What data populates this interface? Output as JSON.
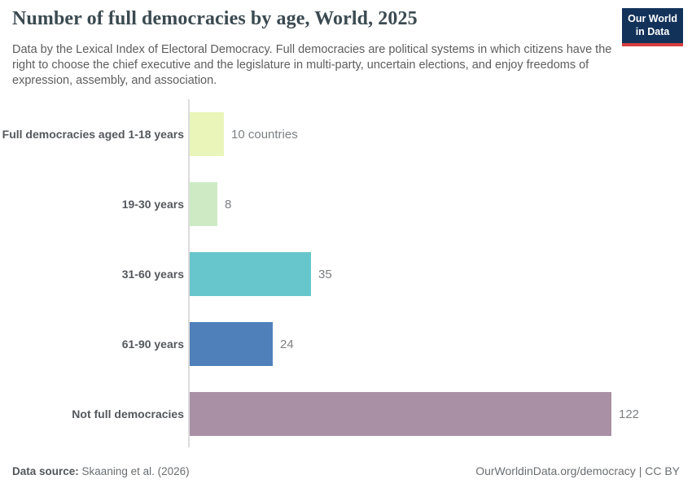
{
  "header": {
    "title": "Number of full democracies by age, World, 2025",
    "subtitle": "Data by the Lexical Index of Electoral Democracy. Full democracies are political systems in which citizens have the right to choose the chief executive and the legislature in multi-party, uncertain elections, and enjoy freedoms of expression, assembly, and association.",
    "logo": {
      "line1": "Our World",
      "line2": "in Data",
      "bg_color": "#12325a",
      "accent_color": "#d53e3e"
    }
  },
  "chart_data": {
    "type": "bar",
    "orientation": "horizontal",
    "title": "Number of full democracies by age, World, 2025",
    "categories": [
      "Full democracies aged 1-18 years",
      "19-30 years",
      "31-60 years",
      "61-90 years",
      "Not full democracies"
    ],
    "values": [
      10,
      8,
      35,
      24,
      122
    ],
    "value_labels": [
      "10 countries",
      "8",
      "35",
      "24",
      "122"
    ],
    "bar_colors": [
      "#e9f5b9",
      "#cdeac4",
      "#66c6cb",
      "#4f80ba",
      "#aa90a5"
    ],
    "xlabel": "",
    "ylabel": "",
    "xlim": [
      0,
      122
    ],
    "grid": false,
    "legend": "none"
  },
  "footer": {
    "data_source_label": "Data source:",
    "data_source_value": "Skaaning et al. (2026)",
    "attribution": "OurWorldinData.org/democracy | CC BY"
  }
}
